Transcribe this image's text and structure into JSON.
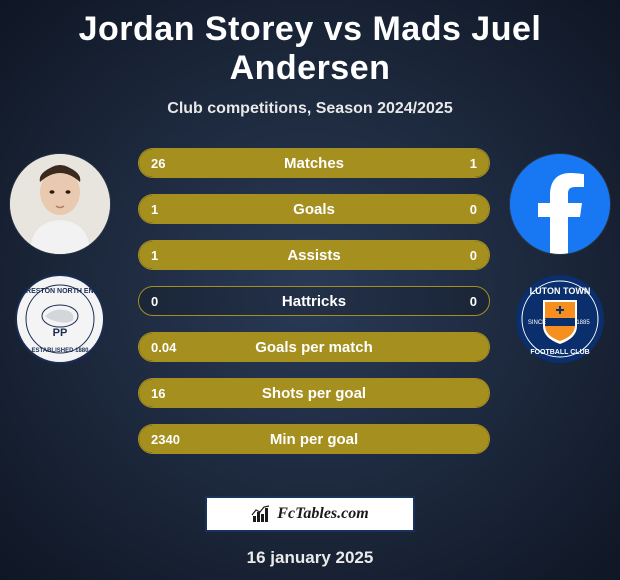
{
  "title": "Jordan Storey vs Mads Juel Andersen",
  "subtitle": "Club competitions, Season 2024/2025",
  "date": "16 january 2025",
  "logo_text": "FcTables.com",
  "colors": {
    "bar_fill": "#a58f1f",
    "bar_border": "#a58f1f",
    "fb_blue": "#1877f2",
    "luton_orange": "#f78f1e",
    "luton_navy": "#0a2f6c",
    "pne_white": "#f4f4f4",
    "pne_navy": "#1a2d52"
  },
  "stats": [
    {
      "label": "Matches",
      "left_val": "26",
      "right_val": "1",
      "left_pct": 96,
      "right_pct": 4
    },
    {
      "label": "Goals",
      "left_val": "1",
      "right_val": "0",
      "left_pct": 100,
      "right_pct": 0
    },
    {
      "label": "Assists",
      "left_val": "1",
      "right_val": "0",
      "left_pct": 100,
      "right_pct": 0
    },
    {
      "label": "Hattricks",
      "left_val": "0",
      "right_val": "0",
      "left_pct": 0,
      "right_pct": 0
    },
    {
      "label": "Goals per match",
      "left_val": "0.04",
      "right_val": "",
      "left_pct": 100,
      "right_pct": 0
    },
    {
      "label": "Shots per goal",
      "left_val": "16",
      "right_val": "",
      "left_pct": 100,
      "right_pct": 0
    },
    {
      "label": "Min per goal",
      "left_val": "2340",
      "right_val": "",
      "left_pct": 100,
      "right_pct": 0
    }
  ]
}
